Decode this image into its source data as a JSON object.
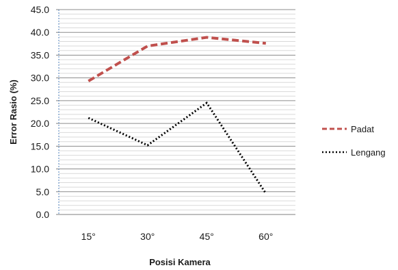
{
  "chart_data": {
    "type": "line",
    "title": "",
    "xlabel": "Posisi Kamera",
    "ylabel": "Error Rasio  (%)",
    "categories": [
      "15°",
      "30°",
      "45°",
      "60°"
    ],
    "ylim": [
      0,
      45
    ],
    "ytick_step": 5,
    "ytick_labels": [
      "0.0",
      "5.0",
      "10.0",
      "15.0",
      "20.0",
      "25.0",
      "30.0",
      "35.0",
      "40.0",
      "45.0"
    ],
    "grid": true,
    "legend_position": "right",
    "series": [
      {
        "name": "Padat",
        "values": [
          29.3,
          37.0,
          38.9,
          37.6
        ],
        "color": "#c0504d",
        "style": "dashed"
      },
      {
        "name": "Lengang",
        "values": [
          21.2,
          15.2,
          24.5,
          4.6
        ],
        "color": "#000000",
        "style": "dotted"
      }
    ]
  }
}
